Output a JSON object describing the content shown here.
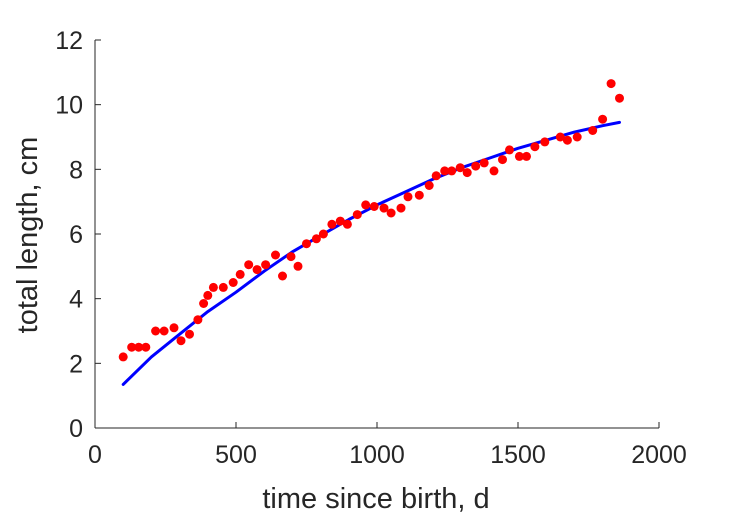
{
  "chart_data": {
    "type": "scatter",
    "xlabel": "time since birth, d",
    "ylabel": "total length, cm",
    "xlim": [
      0,
      2000
    ],
    "ylim": [
      0,
      12
    ],
    "xticks": [
      0,
      500,
      1000,
      1500,
      2000
    ],
    "yticks": [
      0,
      2,
      4,
      6,
      8,
      10,
      12
    ],
    "xtick_labels": [
      "0",
      "500",
      "1000",
      "1500",
      "2000"
    ],
    "ytick_labels": [
      "0",
      "2",
      "4",
      "6",
      "8",
      "10",
      "12"
    ],
    "grid": false,
    "series": [
      {
        "type": "scatter",
        "color": "#ff0000",
        "points": [
          [
            100,
            2.2
          ],
          [
            130,
            2.5
          ],
          [
            155,
            2.5
          ],
          [
            180,
            2.5
          ],
          [
            215,
            3.0
          ],
          [
            245,
            3.0
          ],
          [
            280,
            3.1
          ],
          [
            305,
            2.7
          ],
          [
            335,
            2.9
          ],
          [
            365,
            3.35
          ],
          [
            385,
            3.85
          ],
          [
            400,
            4.1
          ],
          [
            420,
            4.35
          ],
          [
            455,
            4.35
          ],
          [
            490,
            4.5
          ],
          [
            515,
            4.75
          ],
          [
            545,
            5.05
          ],
          [
            575,
            4.9
          ],
          [
            605,
            5.05
          ],
          [
            640,
            5.35
          ],
          [
            665,
            4.7
          ],
          [
            695,
            5.3
          ],
          [
            720,
            5.0
          ],
          [
            750,
            5.7
          ],
          [
            785,
            5.85
          ],
          [
            810,
            6.0
          ],
          [
            840,
            6.3
          ],
          [
            870,
            6.4
          ],
          [
            895,
            6.3
          ],
          [
            930,
            6.6
          ],
          [
            960,
            6.9
          ],
          [
            990,
            6.85
          ],
          [
            1025,
            6.8
          ],
          [
            1050,
            6.65
          ],
          [
            1085,
            6.8
          ],
          [
            1110,
            7.15
          ],
          [
            1150,
            7.2
          ],
          [
            1185,
            7.5
          ],
          [
            1210,
            7.8
          ],
          [
            1240,
            7.95
          ],
          [
            1265,
            7.95
          ],
          [
            1295,
            8.05
          ],
          [
            1320,
            7.9
          ],
          [
            1350,
            8.1
          ],
          [
            1380,
            8.2
          ],
          [
            1415,
            7.95
          ],
          [
            1445,
            8.3
          ],
          [
            1470,
            8.6
          ],
          [
            1505,
            8.4
          ],
          [
            1530,
            8.4
          ],
          [
            1560,
            8.7
          ],
          [
            1595,
            8.85
          ],
          [
            1650,
            9.0
          ],
          [
            1675,
            8.9
          ],
          [
            1710,
            9.0
          ],
          [
            1765,
            9.2
          ],
          [
            1800,
            9.55
          ],
          [
            1830,
            10.65
          ],
          [
            1860,
            10.2
          ]
        ]
      },
      {
        "type": "line",
        "color": "#0000ff",
        "points": [
          [
            100,
            1.35
          ],
          [
            200,
            2.2
          ],
          [
            300,
            2.9
          ],
          [
            400,
            3.6
          ],
          [
            500,
            4.2
          ],
          [
            600,
            4.85
          ],
          [
            700,
            5.45
          ],
          [
            800,
            5.95
          ],
          [
            900,
            6.45
          ],
          [
            1000,
            6.9
          ],
          [
            1100,
            7.3
          ],
          [
            1200,
            7.7
          ],
          [
            1300,
            8.05
          ],
          [
            1400,
            8.35
          ],
          [
            1500,
            8.65
          ],
          [
            1600,
            8.9
          ],
          [
            1700,
            9.15
          ],
          [
            1800,
            9.35
          ],
          [
            1860,
            9.45
          ]
        ]
      }
    ]
  }
}
